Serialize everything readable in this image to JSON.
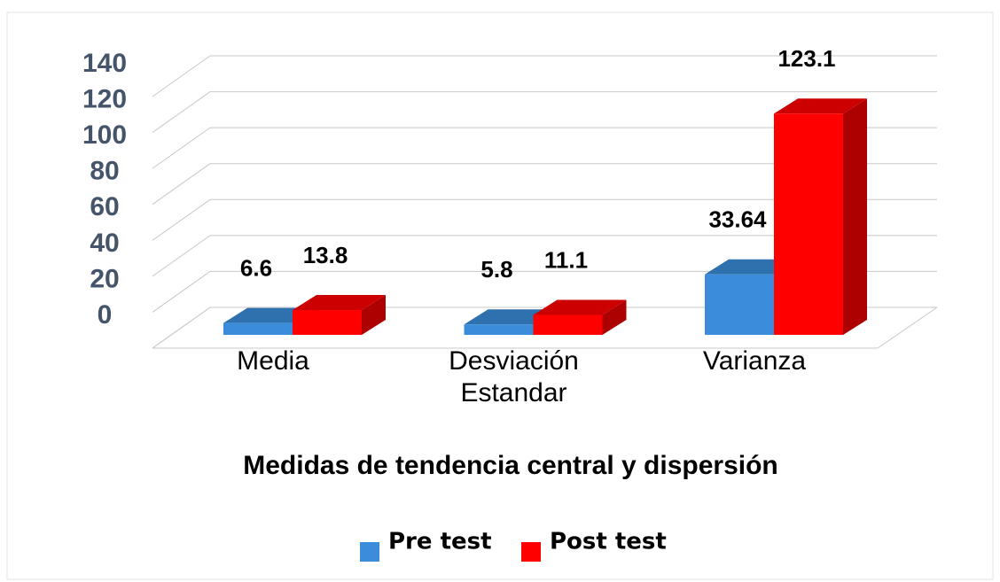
{
  "chart_data": {
    "type": "bar3d",
    "title": "Medidas de tendencia central y dispersión",
    "categories": [
      "Media",
      "Desviación Estandar",
      "Varianza"
    ],
    "series": [
      {
        "name": "Pre test",
        "color": "#3b8ddb",
        "values": [
          6.6,
          5.8,
          33.64
        ]
      },
      {
        "name": "Post test",
        "color": "#ff0000",
        "values": [
          13.8,
          11.1,
          123.1
        ]
      }
    ],
    "ylim": [
      0,
      140
    ],
    "yticks": [
      0,
      20,
      40,
      60,
      80,
      100,
      120,
      140
    ],
    "grid": true,
    "legend": "bottom"
  }
}
